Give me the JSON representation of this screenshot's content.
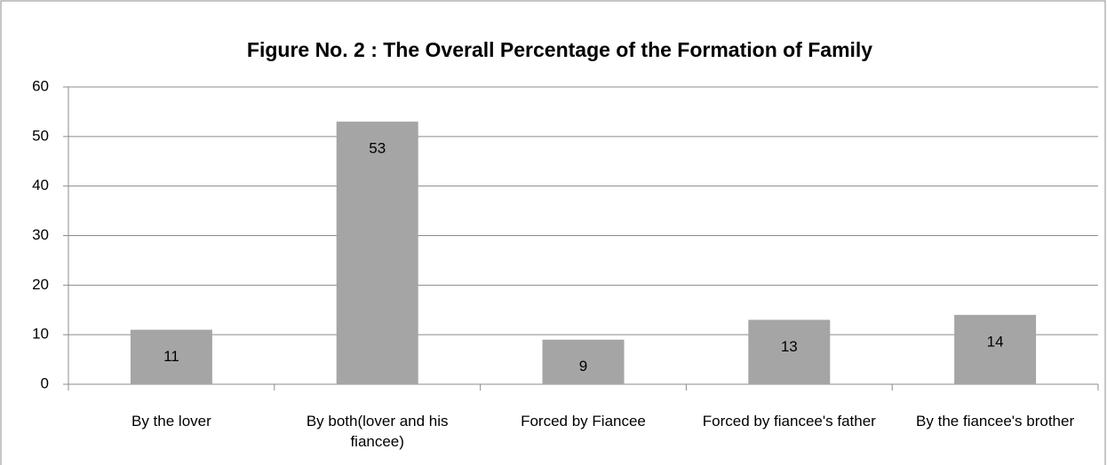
{
  "chart_data": {
    "type": "bar",
    "title": "Figure No. 2 : The Overall Percentage of the Formation of Family",
    "categories": [
      "By the lover",
      "By both(lover and his fiancee)",
      "Forced by Fiancee",
      "Forced by fiancee's father",
      "By the fiancee's brother"
    ],
    "values": [
      11,
      53,
      9,
      13,
      14
    ],
    "color": "#a5a5a5",
    "ylim": [
      0,
      60
    ],
    "yticks": [
      0,
      10,
      20,
      30,
      40,
      50,
      60
    ],
    "grid": true
  }
}
